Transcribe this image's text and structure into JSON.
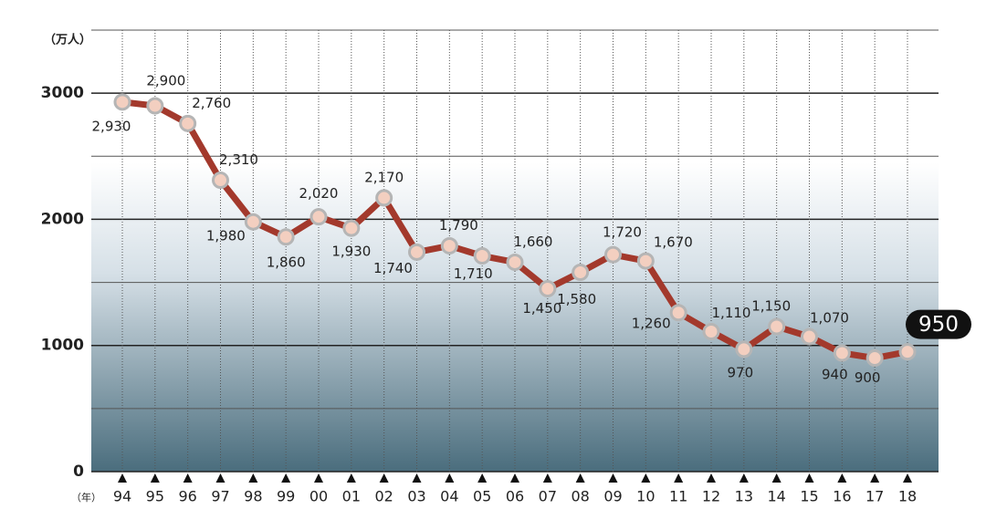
{
  "chart_data": {
    "type": "line",
    "y_axis_label": "（万人）",
    "x_axis_label": "（年）",
    "categories": [
      "94",
      "95",
      "96",
      "97",
      "98",
      "99",
      "00",
      "01",
      "02",
      "03",
      "04",
      "05",
      "06",
      "07",
      "08",
      "09",
      "10",
      "11",
      "12",
      "13",
      "14",
      "15",
      "16",
      "17",
      "18"
    ],
    "series": [
      {
        "name": "万人",
        "color": "#a3392c",
        "values": [
          2930,
          2900,
          2760,
          2310,
          1980,
          1860,
          2020,
          1930,
          2170,
          1740,
          1790,
          1710,
          1660,
          1450,
          1580,
          1720,
          1670,
          1260,
          1110,
          970,
          1150,
          1070,
          940,
          900,
          950
        ],
        "value_labels": [
          "2,930",
          "2,900",
          "2,760",
          "2,310",
          "1,980",
          "1,860",
          "2,020",
          "1,930",
          "2,170",
          "1,740",
          "1,790",
          "1,710",
          "1,660",
          "1,450",
          "1,580",
          "1,720",
          "1,670",
          "1,260",
          "1,110",
          "970",
          "1,150",
          "1,070",
          "940",
          "900",
          "950"
        ]
      }
    ],
    "ylim": [
      0,
      3500
    ],
    "yticks": [
      0,
      1000,
      2000,
      3000
    ],
    "minor_yticks": [
      500,
      1500,
      2500,
      3500
    ],
    "grid": true
  }
}
